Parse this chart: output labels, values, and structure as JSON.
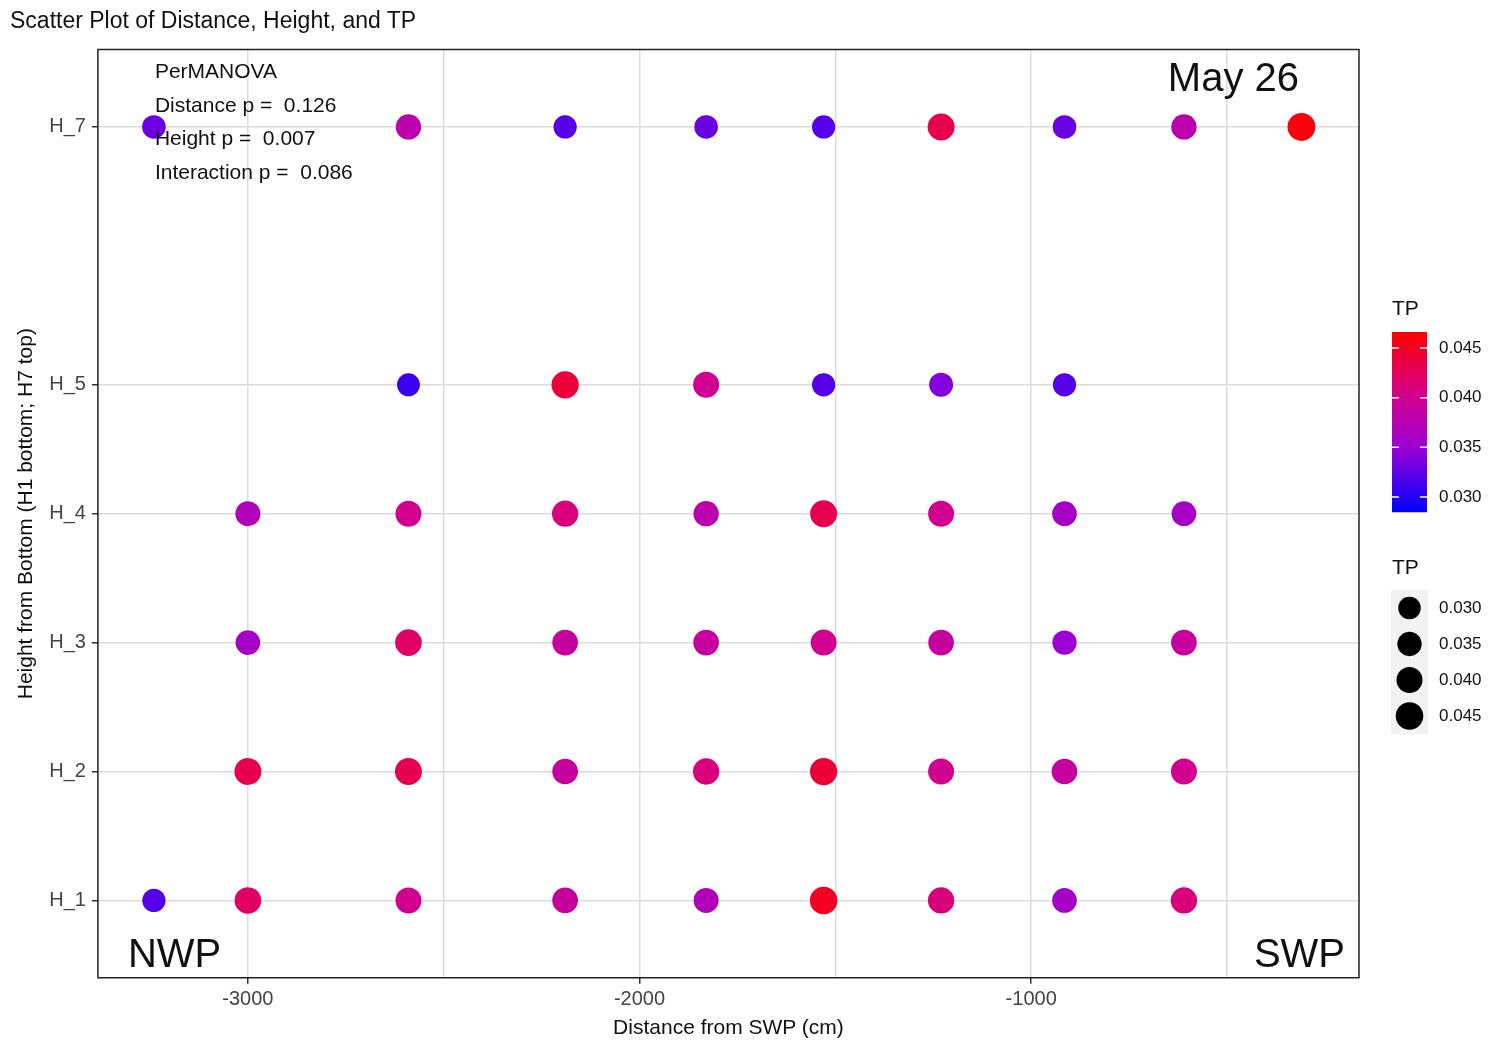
{
  "chart_data": {
    "type": "bubble",
    "title": "Scatter Plot of Distance, Height, and TP",
    "xlabel": "Distance from SWP (cm)",
    "ylabel": "Height from Bottom (H1 bottom; H7 top)",
    "clabel": "TP",
    "legend_title": "TP",
    "xlim": [
      -3383,
      -163
    ],
    "xticks": [
      {
        "value": -3000,
        "label": "-3000"
      },
      {
        "value": -2500,
        "label": null
      },
      {
        "value": -2000,
        "label": "-2000"
      },
      {
        "value": -1500,
        "label": null
      },
      {
        "value": -1000,
        "label": "-1000"
      },
      {
        "value": -500,
        "label": null
      }
    ],
    "ylim": [
      0.4,
      7.6
    ],
    "yticks": [
      {
        "value": 1,
        "label": "H_1"
      },
      {
        "value": 2,
        "label": "H_2"
      },
      {
        "value": 3,
        "label": "H_3"
      },
      {
        "value": 4,
        "label": "H_4"
      },
      {
        "value": 5,
        "label": "H_5"
      },
      {
        "value": 7,
        "label": "H_7"
      }
    ],
    "x": [
      -3240,
      -2590,
      -2190,
      -1830,
      -1530,
      -1230,
      -915,
      -610,
      -310,
      -2590,
      -2190,
      -1830,
      -1530,
      -1230,
      -915,
      -3000,
      -2590,
      -2190,
      -1830,
      -1530,
      -1230,
      -915,
      -610,
      -3000,
      -2590,
      -2190,
      -1830,
      -1530,
      -1230,
      -915,
      -610,
      -3000,
      -2590,
      -2190,
      -1830,
      -1530,
      -1230,
      -915,
      -610,
      -3240,
      -3000,
      -2590,
      -2190,
      -1830,
      -1530,
      -1230,
      -915,
      -610
    ],
    "values": [
      7,
      7,
      7,
      7,
      7,
      7,
      7,
      7,
      7,
      5,
      5,
      5,
      5,
      5,
      5,
      4,
      4,
      4,
      4,
      4,
      4,
      4,
      4,
      3,
      3,
      3,
      3,
      3,
      3,
      3,
      3,
      2,
      2,
      2,
      2,
      2,
      2,
      2,
      2,
      1,
      1,
      1,
      1,
      1,
      1,
      1,
      1,
      1
    ],
    "cvalues": [
      0.033,
      0.038,
      0.032,
      0.033,
      0.032,
      0.043,
      0.033,
      0.038,
      0.046,
      0.031,
      0.044,
      0.04,
      0.032,
      0.034,
      0.032,
      0.037,
      0.04,
      0.041,
      0.038,
      0.043,
      0.04,
      0.036,
      0.036,
      0.036,
      0.042,
      0.039,
      0.039,
      0.04,
      0.039,
      0.035,
      0.039,
      0.043,
      0.043,
      0.039,
      0.041,
      0.044,
      0.04,
      0.039,
      0.04,
      0.032,
      0.042,
      0.04,
      0.039,
      0.037,
      0.045,
      0.041,
      0.036,
      0.041
    ],
    "sizes": [
      0.033,
      0.038,
      0.032,
      0.033,
      0.032,
      0.043,
      0.033,
      0.038,
      0.046,
      0.031,
      0.044,
      0.04,
      0.032,
      0.034,
      0.032,
      0.037,
      0.04,
      0.041,
      0.038,
      0.043,
      0.04,
      0.036,
      0.036,
      0.036,
      0.042,
      0.039,
      0.039,
      0.04,
      0.039,
      0.035,
      0.039,
      0.043,
      0.043,
      0.039,
      0.041,
      0.044,
      0.04,
      0.039,
      0.04,
      0.032,
      0.042,
      0.04,
      0.039,
      0.037,
      0.045,
      0.041,
      0.036,
      0.041
    ],
    "size_legend": [
      {
        "value": 0.03,
        "label": "0.030"
      },
      {
        "value": 0.035,
        "label": "0.035"
      },
      {
        "value": 0.04,
        "label": "0.040"
      },
      {
        "value": 0.045,
        "label": "0.045"
      }
    ],
    "clim": [
      0.0285,
      0.0466
    ],
    "cticks": [
      {
        "value": 0.03,
        "label": "0.030"
      },
      {
        "value": 0.035,
        "label": "0.035"
      },
      {
        "value": 0.04,
        "label": "0.040"
      },
      {
        "value": 0.045,
        "label": "0.045"
      }
    ],
    "grid": true,
    "annotations": [
      "PerMANOVA",
      "Distance p =  0.126",
      "Height p =  0.007",
      "Interaction p =  0.086",
      "May 26",
      "NWP",
      "SWP"
    ]
  }
}
